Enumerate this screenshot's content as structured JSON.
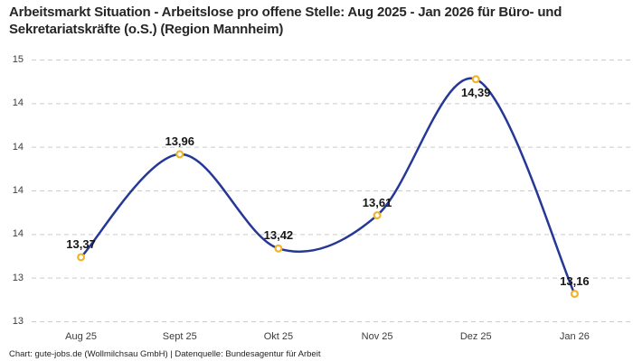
{
  "header": {
    "title": "Arbeitsmarkt Situation - Arbeitslose pro offene Stelle: Aug 2025 - Jan 2026 für Büro- und Sekretariatskräfte (o.S.) (Region Mannheim)"
  },
  "footer": {
    "credit": "Chart: gute-jobs.de (Wollmilchsau GmbH) | Datenquelle: Bundesagentur für Arbeit"
  },
  "chart_data": {
    "type": "line",
    "title": "Arbeitsmarkt Situation - Arbeitslose pro offene Stelle: Aug 2025 - Jan 2026 für Büro- und Sekretariatskräfte (o.S.) (Region Mannheim)",
    "categories": [
      "Aug 25",
      "Sept 25",
      "Okt 25",
      "Nov 25",
      "Dez 25",
      "Jan 26"
    ],
    "values": [
      13.37,
      13.96,
      13.42,
      13.61,
      14.39,
      13.16
    ],
    "value_labels": [
      "13,37",
      "13,96",
      "13,42",
      "13,61",
      "14,39",
      "13,16"
    ],
    "value_label_positions": [
      "above",
      "above",
      "above",
      "above",
      "below",
      "above"
    ],
    "xlabel": "",
    "ylabel": "",
    "ylim": [
      13.0,
      14.5
    ],
    "yticks": [
      14.5,
      14.25,
      14.0,
      13.75,
      13.5,
      13.25,
      13.0
    ],
    "ytick_labels": [
      "15",
      "14",
      "14",
      "14",
      "14",
      "13",
      "13"
    ],
    "grid": "horizontal-dashed",
    "legend": "none",
    "interpolation": "smooth-spline",
    "line_color": "#253896",
    "marker_stroke_color": "#f0b429",
    "marker_fill_color": "#ffffff",
    "grid_color": "#cbcbcb"
  }
}
